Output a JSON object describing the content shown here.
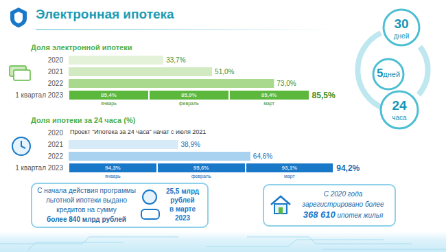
{
  "title": "Электронная ипотека",
  "chart_data": [
    {
      "type": "bar",
      "orientation": "horizontal",
      "title": "Доля электронной ипотеки",
      "categories": [
        "2020",
        "2021",
        "2022",
        "1 квартал 2023"
      ],
      "values": [
        33.7,
        51.0,
        73.0,
        85.5
      ],
      "value_labels": [
        "33,7%",
        "51,0%",
        "73,0%",
        "85,5%"
      ],
      "colors": [
        "#e3f2d9",
        "#d2eac2",
        "#a9d98c",
        "#5cb83c"
      ],
      "xlim": [
        0,
        100
      ],
      "data_labels": true,
      "tick_labels": "y",
      "grid": false,
      "months": {
        "categories": [
          "январь",
          "февраль",
          "март"
        ],
        "values": [
          85.4,
          85.9,
          85.4
        ],
        "value_labels": [
          "85,4%",
          "85,9%",
          "85,4%"
        ]
      }
    },
    {
      "type": "bar",
      "orientation": "horizontal",
      "title": "Доля ипотеки за 24 часа (%)",
      "categories": [
        "2020",
        "2021",
        "2022",
        "1 квартал 2023"
      ],
      "values": [
        null,
        38.9,
        64.6,
        94.2
      ],
      "value_labels": [
        null,
        "38,9%",
        "64,6%",
        "94,2%"
      ],
      "colors": [
        "#d6eaf8",
        "#d6eaf8",
        "#a9d1f0",
        "#1a78c8"
      ],
      "xlim": [
        0,
        100
      ],
      "data_labels": true,
      "tick_labels": "y",
      "grid": false,
      "annotation": {
        "category": "2020",
        "text": "Проект \"Ипотека за 24 часа\" начат с июля 2021"
      },
      "months": {
        "categories": [
          "январь",
          "февраль",
          "март"
        ],
        "values": [
          94.3,
          95.6,
          93.1
        ],
        "value_labels": [
          "94,3%",
          "95,6%",
          "93,1%"
        ]
      }
    }
  ],
  "cycle": [
    {
      "number": "30",
      "unit": "дней"
    },
    {
      "number": "5",
      "unit": "дней"
    },
    {
      "number": "24",
      "unit": "часа"
    }
  ],
  "callouts": [
    {
      "lines": [
        "С начала действия программы",
        "льготной ипотеки выдано",
        "кредитов на сумму",
        "более 840 млрд рублей"
      ]
    },
    {
      "lines": [
        "25,5 млрд",
        "рублей",
        "в марте",
        "2023"
      ]
    },
    {
      "lines": [
        "С 2020 года",
        "зарегистрировано более"
      ],
      "highlight": "368 610",
      "tail": " ипотек жилья"
    }
  ]
}
